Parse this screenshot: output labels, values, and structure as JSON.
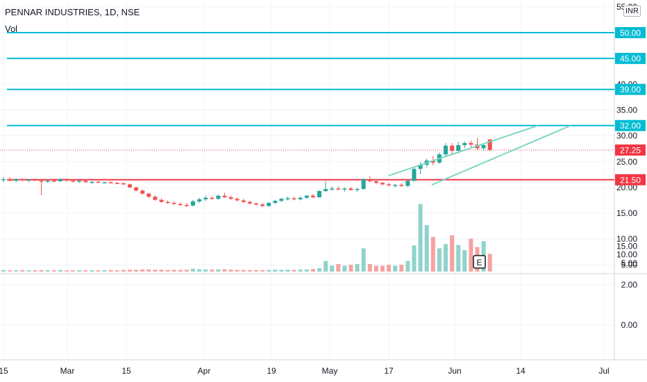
{
  "header": {
    "symbol_line": "PENNAR INDUSTRIES, 1D, NSE",
    "volume_label": "Vol",
    "currency": "INR"
  },
  "colors": {
    "up": "#26a69a",
    "down": "#ef5350",
    "level_line": "#00bcd4",
    "support_line": "#f23645",
    "channel": "#7fd6c2",
    "grid": "#f0f3fa"
  },
  "chart_data": {
    "type": "candlestick",
    "symbol": "PENNAR INDUSTRIES",
    "interval": "1D",
    "exchange": "NSE",
    "last_price": 27.25,
    "price_axis_ticks": [
      55.0,
      50.0,
      45.0,
      40.0,
      35.0,
      30.0,
      25.0,
      20.0,
      15.0,
      10.0,
      5.0
    ],
    "indicator_axis_ticks": [
      2.0,
      0.0
    ],
    "x_tick_labels": [
      "15",
      "Mar",
      "15",
      "Apr",
      "19",
      "May",
      "17",
      "Jun",
      "14",
      "Jul"
    ],
    "horizontal_levels": [
      {
        "price": 50.0,
        "label": "50.00",
        "color": "#00bcd4"
      },
      {
        "price": 45.0,
        "label": "45.00",
        "color": "#00bcd4"
      },
      {
        "price": 39.0,
        "label": "39.00",
        "color": "#00bcd4"
      },
      {
        "price": 32.0,
        "label": "32.00",
        "color": "#00bcd4"
      },
      {
        "price": 21.5,
        "label": "21.50",
        "color": "#f23645"
      }
    ],
    "current_price_label": {
      "price": 27.25,
      "label": "27.25",
      "color": "#f23645"
    },
    "earnings_marker": {
      "label": "E"
    },
    "channel_lines": [
      {
        "from": [
          0,
          22.3
        ],
        "to": [
          1,
          32.0
        ]
      },
      {
        "from": [
          0,
          20.5
        ],
        "to": [
          1,
          32.0
        ]
      }
    ],
    "candles": [
      [
        21.4,
        22.0,
        21.0,
        21.6
      ],
      [
        21.6,
        22.0,
        21.2,
        21.3
      ],
      [
        21.3,
        21.8,
        21.0,
        21.6
      ],
      [
        21.6,
        21.8,
        21.2,
        21.4
      ],
      [
        21.4,
        21.6,
        21.0,
        21.5
      ],
      [
        21.5,
        21.7,
        21.3,
        21.3
      ],
      [
        21.3,
        21.5,
        18.5,
        21.1
      ],
      [
        21.1,
        21.5,
        20.9,
        21.3
      ],
      [
        21.3,
        21.6,
        21.1,
        21.2
      ],
      [
        21.2,
        21.9,
        21.1,
        21.6
      ],
      [
        21.6,
        21.8,
        21.2,
        21.3
      ],
      [
        21.3,
        21.5,
        21.0,
        21.2
      ],
      [
        21.2,
        21.4,
        20.9,
        21.3
      ],
      [
        21.3,
        21.4,
        21.0,
        21.0
      ],
      [
        21.0,
        21.2,
        20.7,
        21.1
      ],
      [
        21.1,
        21.3,
        20.9,
        20.9
      ],
      [
        20.9,
        21.1,
        20.8,
        21.0
      ],
      [
        21.0,
        21.2,
        20.8,
        20.9
      ],
      [
        20.9,
        21.1,
        20.6,
        20.8
      ],
      [
        20.8,
        21.0,
        20.5,
        20.6
      ],
      [
        20.6,
        20.8,
        19.9,
        20.0
      ],
      [
        20.0,
        20.2,
        19.2,
        19.4
      ],
      [
        19.4,
        19.6,
        18.6,
        18.8
      ],
      [
        18.8,
        19.0,
        17.9,
        18.2
      ],
      [
        18.2,
        18.5,
        17.4,
        17.6
      ],
      [
        17.6,
        17.9,
        17.0,
        17.2
      ],
      [
        17.2,
        17.5,
        16.8,
        17.0
      ],
      [
        17.0,
        17.3,
        16.6,
        16.8
      ],
      [
        16.8,
        17.1,
        16.4,
        16.6
      ],
      [
        16.6,
        17.0,
        16.2,
        16.5
      ],
      [
        16.5,
        17.6,
        16.3,
        17.3
      ],
      [
        17.3,
        18.0,
        17.0,
        17.7
      ],
      [
        17.7,
        18.4,
        17.4,
        18.0
      ],
      [
        18.0,
        18.3,
        17.6,
        17.8
      ],
      [
        17.8,
        18.6,
        17.6,
        18.4
      ],
      [
        18.4,
        19.0,
        18.0,
        18.1
      ],
      [
        18.1,
        18.4,
        17.6,
        17.8
      ],
      [
        17.8,
        18.1,
        17.3,
        17.5
      ],
      [
        17.5,
        17.8,
        17.0,
        17.2
      ],
      [
        17.2,
        17.4,
        16.7,
        16.9
      ],
      [
        16.9,
        17.1,
        16.5,
        16.7
      ],
      [
        16.7,
        17.0,
        16.2,
        16.4
      ],
      [
        16.4,
        17.2,
        16.3,
        17.0
      ],
      [
        17.0,
        17.6,
        16.8,
        17.4
      ],
      [
        17.4,
        18.0,
        17.2,
        17.8
      ],
      [
        17.8,
        18.2,
        17.5,
        17.9
      ],
      [
        17.9,
        18.2,
        17.5,
        17.7
      ],
      [
        17.7,
        18.3,
        17.5,
        18.0
      ],
      [
        18.0,
        18.6,
        17.8,
        18.4
      ],
      [
        18.4,
        18.7,
        17.9,
        18.1
      ],
      [
        18.1,
        19.5,
        18.0,
        19.3
      ],
      [
        19.3,
        21.3,
        19.1,
        19.7
      ],
      [
        19.7,
        20.2,
        19.4,
        19.8
      ],
      [
        19.8,
        20.2,
        19.5,
        19.6
      ],
      [
        19.6,
        20.0,
        19.2,
        19.8
      ],
      [
        19.8,
        20.1,
        19.4,
        19.5
      ],
      [
        19.5,
        19.9,
        19.2,
        19.7
      ],
      [
        19.7,
        21.8,
        19.6,
        21.6
      ],
      [
        21.6,
        22.2,
        21.0,
        21.2
      ],
      [
        21.2,
        21.5,
        20.6,
        20.9
      ],
      [
        20.9,
        21.1,
        20.4,
        20.6
      ],
      [
        20.6,
        20.9,
        20.2,
        20.4
      ],
      [
        20.4,
        20.7,
        20.0,
        20.5
      ],
      [
        20.5,
        20.8,
        20.1,
        20.3
      ],
      [
        20.3,
        21.5,
        20.1,
        21.3
      ],
      [
        21.3,
        24.0,
        21.1,
        23.6
      ],
      [
        23.6,
        24.9,
        22.6,
        24.4
      ],
      [
        24.4,
        25.6,
        23.9,
        25.2
      ],
      [
        25.2,
        26.1,
        24.3,
        24.8
      ],
      [
        24.8,
        26.8,
        24.6,
        26.4
      ],
      [
        26.4,
        28.6,
        26.1,
        28.1
      ],
      [
        28.1,
        28.6,
        26.3,
        27.1
      ],
      [
        27.1,
        28.8,
        26.6,
        28.2
      ],
      [
        28.2,
        28.9,
        27.6,
        28.6
      ],
      [
        28.6,
        29.1,
        27.7,
        28.3
      ],
      [
        28.3,
        29.6,
        27.1,
        27.6
      ],
      [
        27.6,
        28.6,
        27.1,
        28.2
      ],
      [
        29.3,
        29.4,
        27.0,
        27.25
      ]
    ],
    "volume": [
      0.35,
      0.3,
      0.3,
      0.35,
      0.3,
      0.3,
      0.35,
      0.3,
      0.3,
      0.35,
      0.3,
      0.3,
      0.3,
      0.3,
      0.3,
      0.3,
      0.3,
      0.35,
      0.3,
      0.4,
      0.45,
      0.45,
      0.5,
      0.5,
      0.45,
      0.45,
      0.4,
      0.4,
      0.4,
      0.45,
      0.65,
      0.55,
      0.5,
      0.45,
      0.5,
      0.55,
      0.45,
      0.4,
      0.4,
      0.35,
      0.35,
      0.35,
      0.4,
      0.45,
      0.4,
      0.45,
      0.4,
      0.45,
      0.5,
      0.6,
      0.8,
      2.5,
      1.4,
      1.8,
      1.4,
      1.6,
      1.8,
      5.5,
      1.8,
      1.4,
      1.4,
      1.6,
      1.4,
      1.6,
      2.5,
      6.2,
      16.0,
      11.0,
      8.2,
      5.5,
      6.5,
      8.6,
      6.3,
      5.1,
      7.8,
      5.8,
      7.2,
      4.2
    ],
    "volume_axis_ticks": [
      15.0,
      10.0,
      5.0
    ]
  }
}
